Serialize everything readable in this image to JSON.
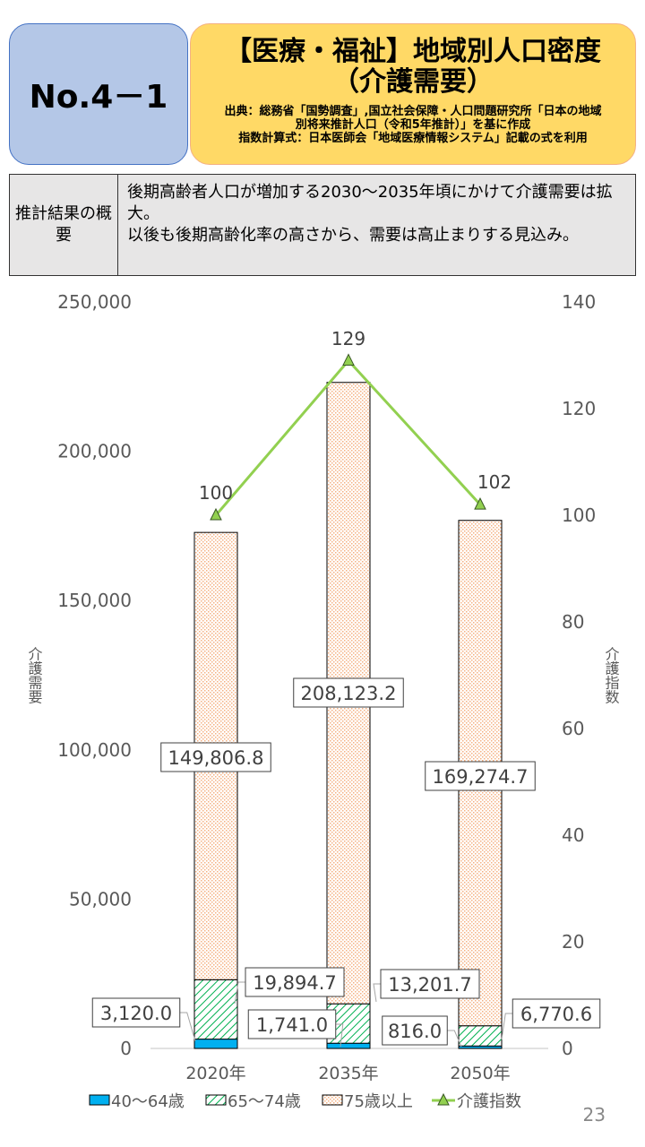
{
  "header": {
    "number": "No.4－1",
    "title_line1": "【医療・福祉】地域別人口密度",
    "title_line2": "（介護需要）",
    "source_line1": "出典：総務省「国勢調査」,国立社会保障・人口問題研究所「日本の地域",
    "source_line2": "別将来推計人口（令和5年推計）」を基に作成",
    "source_line3": "指数計算式：日本医師会「地域医療情報システム」記載の式を利用"
  },
  "summary": {
    "heading": "推計結果の概要",
    "text_line1": "後期高齢者人口が増加する2030～2035年頃にかけて介護需要は拡大。",
    "text_line2": "以後も後期高齢化率の高さから、需要は高止まりする見込み。"
  },
  "page_number": "23",
  "colors": {
    "blue": "#00b0f0",
    "green": "#00b050",
    "orange": "#f4b183",
    "line": "#92d050"
  },
  "chart_data": {
    "type": "bar",
    "stacked": true,
    "categories": [
      "2020年",
      "2035年",
      "2050年"
    ],
    "series": [
      {
        "name": "40～64歳",
        "values": [
          3120.0,
          1741.0,
          816.0
        ],
        "labels": [
          "3,120.0",
          "1,741.0",
          "816.0"
        ]
      },
      {
        "name": "65～74歳",
        "values": [
          19894.7,
          13201.7,
          6770.6
        ],
        "labels": [
          "19,894.7",
          "13,201.7",
          "6,770.6"
        ]
      },
      {
        "name": "75歳以上",
        "values": [
          149806.8,
          208123.2,
          169274.7
        ],
        "labels": [
          "149,806.8",
          "208,123.2",
          "169,274.7"
        ]
      },
      {
        "name": "介護指数",
        "type": "line",
        "axis": "right",
        "values": [
          100,
          129,
          102
        ],
        "labels": [
          "100",
          "129",
          "102"
        ]
      }
    ],
    "ylabel": "介護需要",
    "y2label": "介護指数",
    "ylim": [
      0,
      250000
    ],
    "y2lim": [
      0,
      140
    ],
    "yticks": [
      "0",
      "50,000",
      "100,000",
      "150,000",
      "200,000",
      "250,000"
    ],
    "y2ticks": [
      "0",
      "20",
      "40",
      "60",
      "80",
      "100",
      "120",
      "140"
    ],
    "legend": "bottom"
  }
}
